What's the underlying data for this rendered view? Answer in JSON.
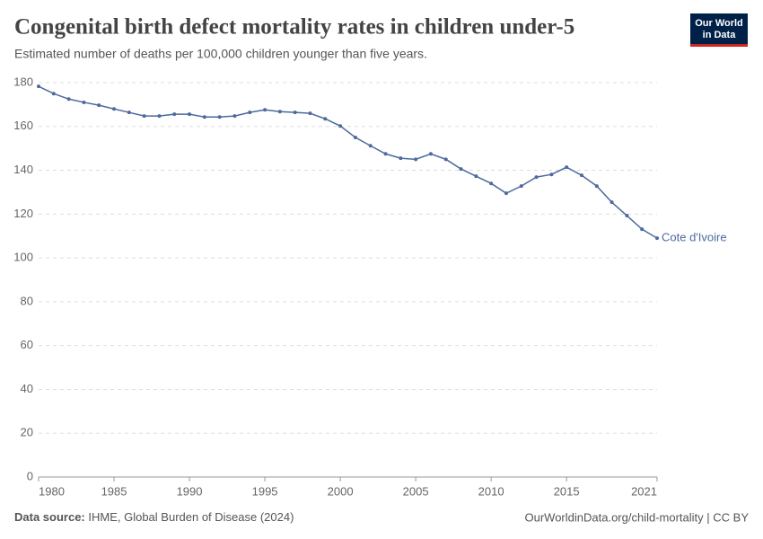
{
  "chart_data": {
    "type": "line",
    "title": "Congenital birth defect mortality rates in children under-5",
    "subtitle": "Estimated number of deaths per 100,000 children younger than five years.",
    "x": [
      1980,
      1981,
      1982,
      1983,
      1984,
      1985,
      1986,
      1987,
      1988,
      1989,
      1990,
      1991,
      1992,
      1993,
      1994,
      1995,
      1996,
      1997,
      1998,
      1999,
      2000,
      2001,
      2002,
      2003,
      2004,
      2005,
      2006,
      2007,
      2008,
      2009,
      2010,
      2011,
      2012,
      2013,
      2014,
      2015,
      2016,
      2017,
      2018,
      2019,
      2020,
      2021
    ],
    "series": [
      {
        "name": "Cote d'Ivoire",
        "color": "#4c6a9c",
        "values": [
          178.3,
          175,
          172.5,
          171,
          169.7,
          168,
          166.4,
          164.8,
          164.8,
          165.6,
          165.6,
          164.3,
          164.3,
          164.8,
          166.4,
          167.6,
          166.8,
          166.4,
          166,
          163.5,
          160.2,
          155,
          151.2,
          147.5,
          145.5,
          145,
          147.5,
          145,
          140.6,
          137.3,
          134,
          129.5,
          132.8,
          136.9,
          138.1,
          141.4,
          137.7,
          132.8,
          125.4,
          119.3,
          113.1,
          109
        ]
      }
    ],
    "xlim": [
      1980,
      2021
    ],
    "xticks": [
      1980,
      1985,
      1990,
      1995,
      2000,
      2005,
      2010,
      2015,
      2021
    ],
    "ylim": [
      0,
      180
    ],
    "yticks": [
      0,
      20,
      40,
      60,
      80,
      100,
      120,
      140,
      160,
      180
    ],
    "grid": true
  },
  "logo": {
    "lines": [
      "Our World",
      "in Data"
    ]
  },
  "footer": {
    "source_label": "Data source:",
    "source": "IHME, Global Burden of Disease (2024)",
    "credit": "OurWorldinData.org/child-mortality | CC BY"
  }
}
